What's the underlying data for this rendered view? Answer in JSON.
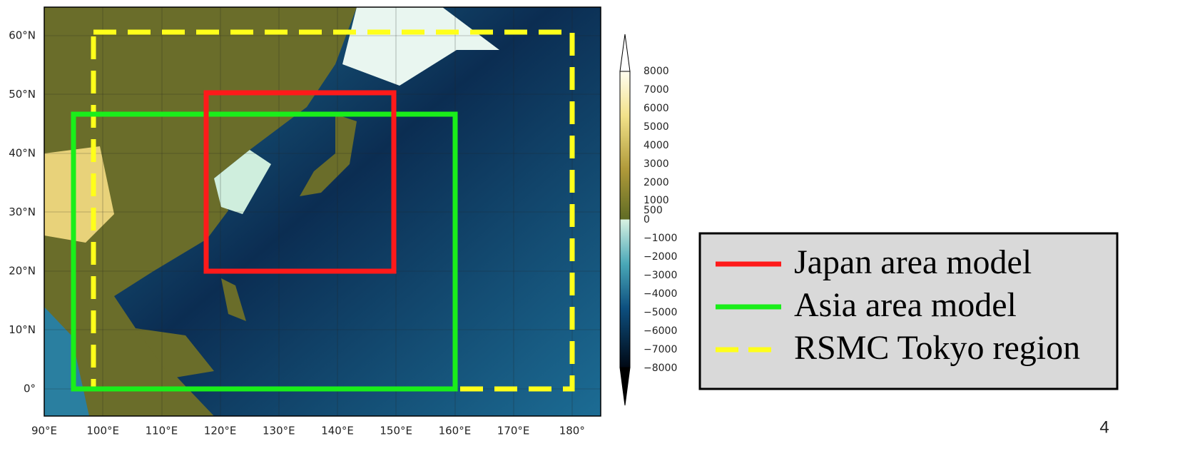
{
  "map": {
    "lon_labels": [
      "90°E",
      "100°E",
      "110°E",
      "120°E",
      "130°E",
      "140°E",
      "150°E",
      "160°E",
      "170°E",
      "180°"
    ],
    "lat_labels": [
      "60°N",
      "50°N",
      "40°N",
      "30°N",
      "20°N",
      "10°N",
      "0°"
    ]
  },
  "colorbar": {
    "labels": [
      "8000",
      "7000",
      "6000",
      "5000",
      "4000",
      "3000",
      "2000",
      "1000",
      "500",
      "0",
      "−1000",
      "−2000",
      "−3000",
      "−4000",
      "−5000",
      "−6000",
      "−7000",
      "−8000"
    ]
  },
  "legend": {
    "items": [
      {
        "label": "Japan area model",
        "color": "#ff1a1a",
        "style": "solid"
      },
      {
        "label": "Asia area model",
        "color": "#1aee1a",
        "style": "solid"
      },
      {
        "label": "RSMC Tokyo region",
        "color": "#ffff1a",
        "style": "dashed"
      }
    ]
  },
  "page_number": "4"
}
